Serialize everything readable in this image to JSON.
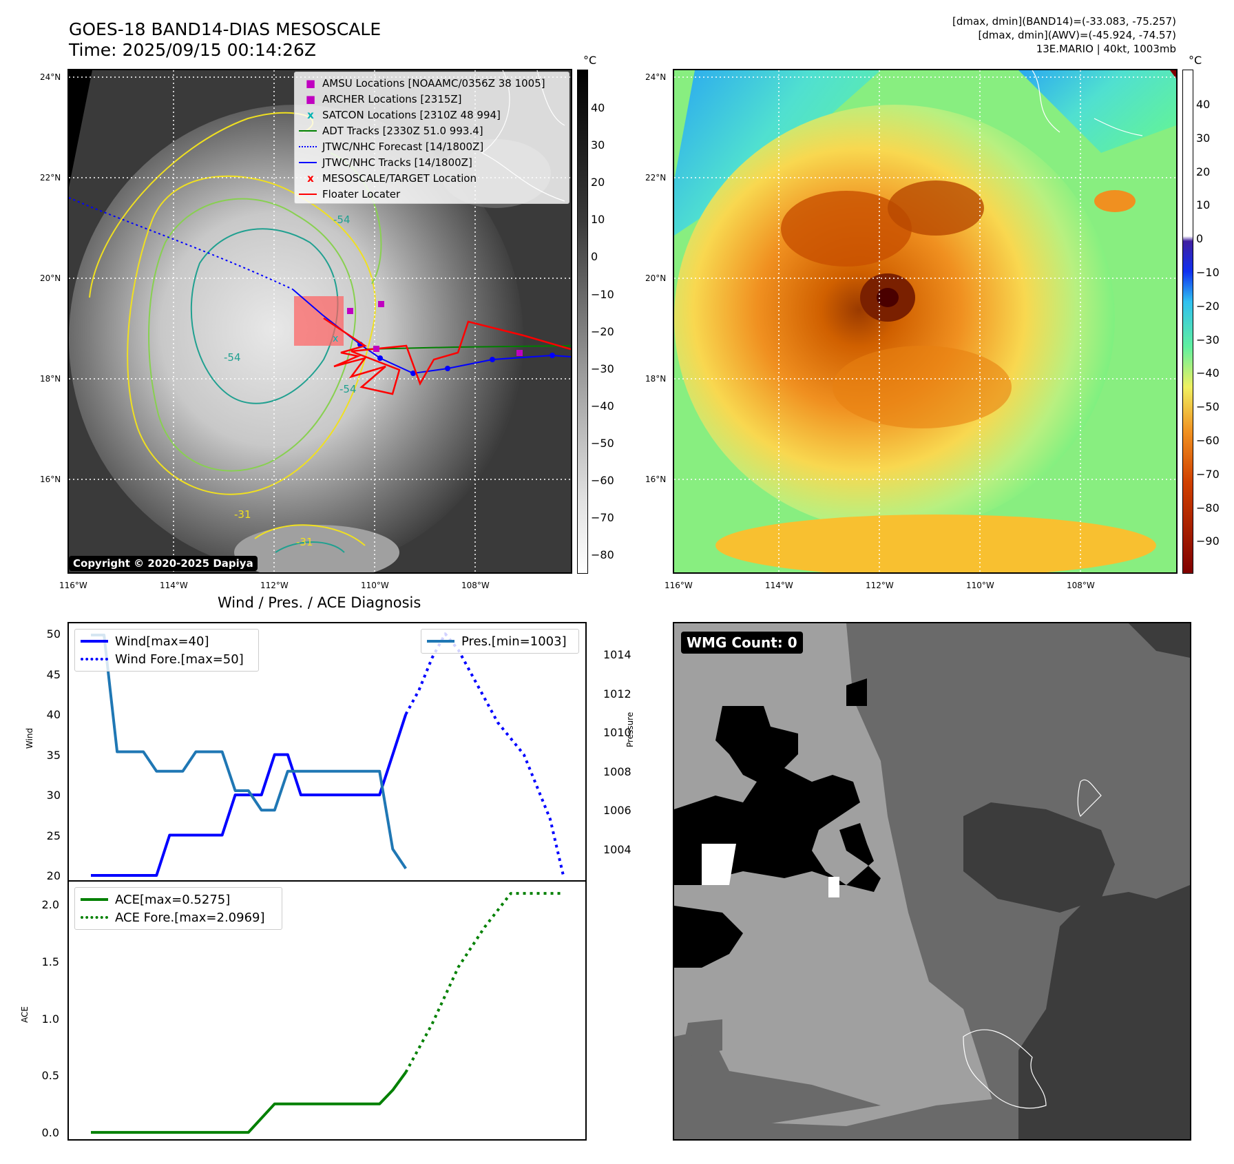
{
  "header": {
    "title_line1": "GOES-18 BAND14-DIAS MESOSCALE",
    "title_line2": "Time: 2025/09/15 00:14:26Z",
    "right_line1": "[dmax, dmin](BAND14)=(-33.083, -75.257)",
    "right_line2": "[dmax, dmin](AWV)=(-45.924, -74.57)",
    "right_line3": "13E.MARIO | 40kt, 1003mb"
  },
  "map_axes": {
    "lat_ticks": [
      "24°N",
      "22°N",
      "20°N",
      "18°N",
      "16°N"
    ],
    "lon_ticks": [
      "116°W",
      "114°W",
      "112°W",
      "110°W",
      "108°W"
    ]
  },
  "ir_panel": {
    "cbar_unit": "°C",
    "cbar_ticks": [
      "40",
      "30",
      "20",
      "10",
      "0",
      "−10",
      "−20",
      "−30",
      "−40",
      "−50",
      "−60",
      "−70",
      "−80"
    ],
    "contour_labels": [
      "-54",
      "-54",
      "-54",
      "-31",
      "-31"
    ],
    "copyright": "Copyright © 2020-2025 Dapiya",
    "legend": [
      {
        "label": "AMSU Locations [NOAAMC/0356Z 38 1005]",
        "color": "#c000c0",
        "marker": "square"
      },
      {
        "label": "ARCHER Locations [2315Z]",
        "color": "#c000c0",
        "marker": "square"
      },
      {
        "label": "SATCON Locations [2310Z 48 994]",
        "color": "#00b3b3",
        "marker": "x"
      },
      {
        "label": "ADT Tracks [2330Z 51.0 993.4]",
        "color": "#008000",
        "marker": "line"
      },
      {
        "label": "JTWC/NHC Forecast [14/1800Z]",
        "color": "#0000ff",
        "marker": "dotted"
      },
      {
        "label": "JTWC/NHC Tracks [14/1800Z]",
        "color": "#0000ff",
        "marker": "line-dot"
      },
      {
        "label": "MESOSCALE/TARGET Location",
        "color": "#ff0000",
        "marker": "x"
      },
      {
        "label": "Floater Locater",
        "color": "#ff0000",
        "marker": "line"
      }
    ]
  },
  "awv_panel": {
    "cbar_unit": "°C",
    "cbar_ticks": [
      "40",
      "30",
      "20",
      "10",
      "0",
      "−10",
      "−20",
      "−30",
      "−40",
      "−50",
      "−60",
      "−70",
      "−80",
      "−90"
    ]
  },
  "wind_panel": {
    "title": "Wind / Pres. / ACE Diagnosis",
    "ylabel_left": "Wind",
    "ylabel_right": "Pressure",
    "left_ticks": [
      "50",
      "45",
      "40",
      "35",
      "30",
      "25",
      "20"
    ],
    "right_ticks": [
      "1014",
      "1012",
      "1010",
      "1008",
      "1006",
      "1004"
    ],
    "legend_wind": "Wind[max=40]",
    "legend_wind_fore": "Wind Fore.[max=50]",
    "legend_pres": "Pres.[min=1003]"
  },
  "ace_panel": {
    "ylabel": "ACE",
    "ticks": [
      "2.0",
      "1.5",
      "1.0",
      "0.5",
      "0.0"
    ],
    "legend_ace": "ACE[max=0.5275]",
    "legend_ace_fore": "ACE Fore.[max=2.0969]"
  },
  "wmg_panel": {
    "badge": "WMG Count: 0"
  },
  "chart_data": [
    {
      "type": "line",
      "name": "wind",
      "x": [
        0,
        1,
        2,
        3,
        4,
        5,
        6,
        7,
        8,
        9,
        10,
        11,
        12,
        13,
        14,
        15,
        16,
        17,
        18,
        19,
        20,
        21,
        22,
        23,
        24,
        25,
        26,
        27,
        28,
        29,
        30,
        31,
        32,
        33,
        34,
        35,
        36
      ],
      "series": [
        {
          "name": "Wind[max=40]",
          "color": "#0000ff",
          "style": "solid",
          "axis": "left",
          "x": [
            0,
            1,
            2,
            3,
            4,
            5,
            6,
            7,
            8,
            9,
            10,
            11,
            12,
            13,
            14,
            15,
            16,
            17,
            18,
            19,
            20,
            21,
            22,
            23,
            24
          ],
          "values": [
            20,
            20,
            20,
            20,
            20,
            20,
            25,
            25,
            25,
            25,
            25,
            30,
            30,
            30,
            35,
            35,
            30,
            30,
            30,
            30,
            30,
            30,
            30,
            35,
            40
          ]
        },
        {
          "name": "Wind Fore.[max=50]",
          "color": "#0000ff",
          "style": "dotted",
          "axis": "left",
          "x": [
            24,
            25,
            26,
            27,
            28,
            29,
            30,
            31,
            32,
            33,
            34,
            35,
            36
          ],
          "values": [
            40,
            43,
            47,
            50,
            48,
            45,
            42,
            39,
            37,
            35,
            31,
            27,
            20
          ]
        },
        {
          "name": "Pres.[min=1003]",
          "color": "#1f77b4",
          "style": "solid",
          "axis": "right",
          "x": [
            0,
            1,
            2,
            3,
            4,
            5,
            6,
            7,
            8,
            9,
            10,
            11,
            12,
            13,
            14,
            15,
            16,
            17,
            18,
            19,
            20,
            21,
            22,
            23,
            24
          ],
          "values": [
            1015,
            1015,
            1009,
            1009,
            1009,
            1008,
            1008,
            1008,
            1009,
            1009,
            1009,
            1007,
            1007,
            1006,
            1006,
            1008,
            1008,
            1008,
            1008,
            1008,
            1008,
            1008,
            1008,
            1004,
            1003
          ]
        }
      ],
      "ylim_left": [
        19.4,
        51.3
      ],
      "ylim_right": [
        1002.4,
        1015.6
      ]
    },
    {
      "type": "line",
      "name": "ace",
      "series": [
        {
          "name": "ACE[max=0.5275]",
          "color": "#008000",
          "style": "solid",
          "x": [
            0,
            2,
            4,
            6,
            8,
            10,
            12,
            14,
            16,
            18,
            20,
            22,
            23,
            24
          ],
          "values": [
            0,
            0,
            0,
            0,
            0,
            0,
            0,
            0.25,
            0.25,
            0.25,
            0.25,
            0.25,
            0.37,
            0.5275
          ]
        },
        {
          "name": "ACE Fore.[max=2.0969]",
          "color": "#008000",
          "style": "dotted",
          "x": [
            24,
            26,
            28,
            30,
            32,
            34,
            36
          ],
          "values": [
            0.5275,
            0.95,
            1.45,
            1.8,
            2.0969,
            2.0969,
            2.0969
          ]
        }
      ],
      "ylim": [
        -0.06,
        2.2
      ]
    }
  ]
}
